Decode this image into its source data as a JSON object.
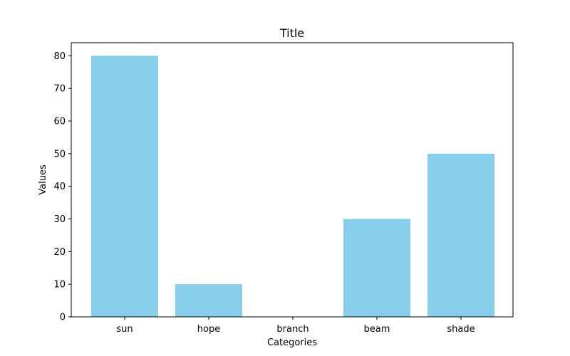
{
  "chart_data": {
    "type": "bar",
    "title": "Title",
    "xlabel": "Categories",
    "ylabel": "Values",
    "categories": [
      "sun",
      "hope",
      "branch",
      "beam",
      "shade"
    ],
    "values": [
      80,
      10,
      0,
      30,
      50
    ],
    "ylim": [
      0,
      84
    ],
    "yticks": [
      0,
      10,
      20,
      30,
      40,
      50,
      60,
      70,
      80
    ],
    "bar_color": "#87ceeb",
    "grid": false,
    "legend": "none"
  }
}
